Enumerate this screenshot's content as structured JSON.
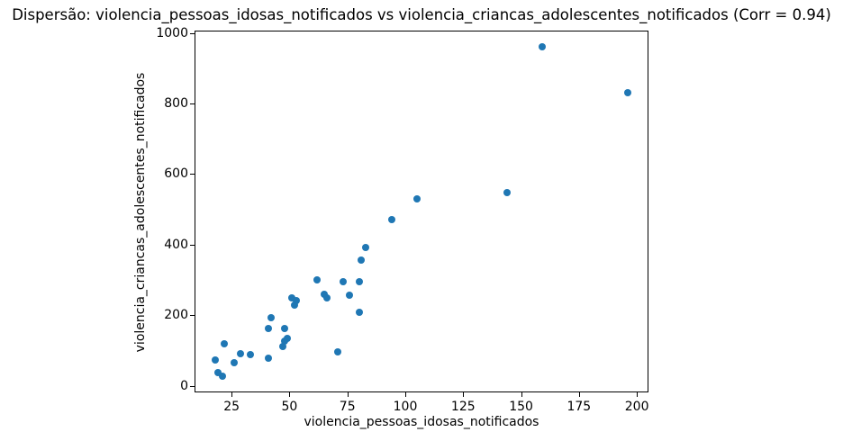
{
  "title": "Dispersão: violencia_pessoas_idosas_notificados vs violencia_criancas_adolescentes_notificados (Corr = 0.94)",
  "chart_data": {
    "type": "scatter",
    "title": "Dispersão: violencia_pessoas_idosas_notificados vs violencia_criancas_adolescentes_notificados (Corr = 0.94)",
    "xlabel": "violencia_pessoas_idosas_notificados",
    "ylabel": "violencia_criancas_adolescentes_notificados",
    "correlation": 0.94,
    "marker_color": "#1f77b4",
    "grid": false,
    "legend": "none",
    "xlim": [
      9,
      205
    ],
    "ylim": [
      -19,
      1007
    ],
    "x_ticks": [
      25,
      50,
      75,
      100,
      125,
      150,
      175,
      200
    ],
    "y_ticks": [
      0,
      200,
      400,
      600,
      800,
      1000
    ],
    "points": [
      {
        "x": 18,
        "y": 74
      },
      {
        "x": 19,
        "y": 36
      },
      {
        "x": 21,
        "y": 27
      },
      {
        "x": 22,
        "y": 119
      },
      {
        "x": 26,
        "y": 66
      },
      {
        "x": 29,
        "y": 91
      },
      {
        "x": 33,
        "y": 87
      },
      {
        "x": 41,
        "y": 79
      },
      {
        "x": 41,
        "y": 161
      },
      {
        "x": 42,
        "y": 193
      },
      {
        "x": 47,
        "y": 112
      },
      {
        "x": 48,
        "y": 126
      },
      {
        "x": 49,
        "y": 135
      },
      {
        "x": 48,
        "y": 161
      },
      {
        "x": 51,
        "y": 249
      },
      {
        "x": 53,
        "y": 241
      },
      {
        "x": 52,
        "y": 228
      },
      {
        "x": 62,
        "y": 299
      },
      {
        "x": 65,
        "y": 258
      },
      {
        "x": 66,
        "y": 248
      },
      {
        "x": 71,
        "y": 95
      },
      {
        "x": 73,
        "y": 295
      },
      {
        "x": 76,
        "y": 257
      },
      {
        "x": 80,
        "y": 296
      },
      {
        "x": 80,
        "y": 208
      },
      {
        "x": 81,
        "y": 357
      },
      {
        "x": 83,
        "y": 393
      },
      {
        "x": 94,
        "y": 470
      },
      {
        "x": 105,
        "y": 530
      },
      {
        "x": 144,
        "y": 547
      },
      {
        "x": 159,
        "y": 960
      },
      {
        "x": 196,
        "y": 832
      }
    ]
  }
}
